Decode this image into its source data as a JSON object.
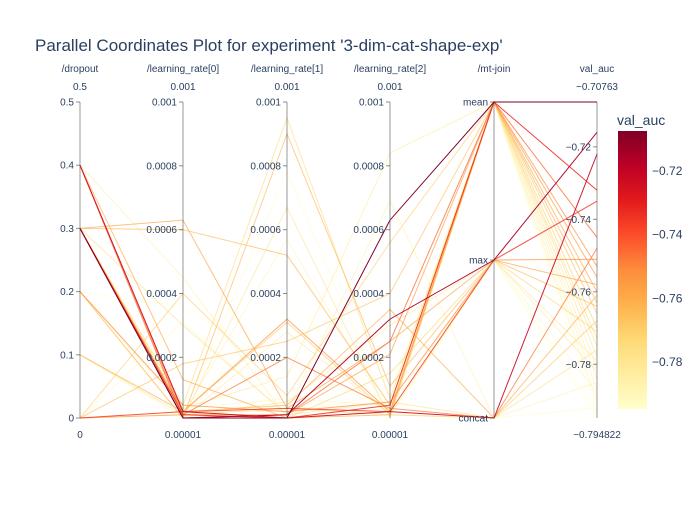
{
  "chart_data": {
    "type": "parallel-coordinates",
    "title": "Parallel Coordinates Plot for experiment '3-dim-cat-shape-exp'",
    "color_dimension": "val_auc",
    "colorbar": {
      "title": "val_auc",
      "range": [
        -0.794822,
        -0.70763
      ],
      "tick_labels": [
        "−0.72",
        "−0.74",
        "−0.76",
        "−0.78"
      ],
      "tick_values": [
        -0.72,
        -0.74,
        -0.76,
        -0.78
      ],
      "colorscale": [
        "#ffffcc",
        "#ffeda0",
        "#fed976",
        "#feb24c",
        "#fd8d3c",
        "#fc4e2a",
        "#e31a1c",
        "#bd0026",
        "#800026"
      ]
    },
    "dimensions": [
      {
        "label": "/dropout",
        "range": [
          0,
          0.5
        ],
        "top_label": "0.5",
        "bottom_label": "0",
        "tick_values": [
          0,
          0.1,
          0.2,
          0.3,
          0.4,
          0.5
        ],
        "tick_labels": [
          "0",
          "0.1",
          "0.2",
          "0.3",
          "0.4",
          "0.5"
        ]
      },
      {
        "label": "/learning_rate[0]",
        "range": [
          1e-05,
          0.001
        ],
        "top_label": "0.001",
        "bottom_label": "0.00001",
        "tick_values": [
          0.0002,
          0.0004,
          0.0006,
          0.0008,
          0.001
        ],
        "tick_labels": [
          "0.0002",
          "0.0004",
          "0.0006",
          "0.0008",
          "0.001"
        ]
      },
      {
        "label": "/learning_rate[1]",
        "range": [
          1e-05,
          0.001
        ],
        "top_label": "0.001",
        "bottom_label": "0.00001",
        "tick_values": [
          0.0002,
          0.0004,
          0.0006,
          0.0008,
          0.001
        ],
        "tick_labels": [
          "0.0002",
          "0.0004",
          "0.0006",
          "0.0008",
          "0.001"
        ]
      },
      {
        "label": "/learning_rate[2]",
        "range": [
          1e-05,
          0.001
        ],
        "top_label": "0.001",
        "bottom_label": "0.00001",
        "tick_values": [
          0.0002,
          0.0004,
          0.0006,
          0.0008,
          0.001
        ],
        "tick_labels": [
          "0.0002",
          "0.0004",
          "0.0006",
          "0.0008",
          "0.001"
        ]
      },
      {
        "label": "/mt-join",
        "categorical": true,
        "categories": [
          "concat",
          "max",
          "mean"
        ],
        "tick_values": [
          0,
          1,
          2
        ],
        "tick_labels": [
          "concat",
          "max",
          "mean"
        ]
      },
      {
        "label": "val_auc",
        "range": [
          -0.794822,
          -0.70763
        ],
        "top_label": "−0.70763",
        "bottom_label": "−0.794822",
        "tick_values": [
          -0.72,
          -0.74,
          -0.76,
          -0.78
        ],
        "tick_labels": [
          "−0.72",
          "−0.74",
          "−0.76",
          "−0.78"
        ]
      }
    ],
    "lines": [
      [
        0.3,
        1e-05,
        1e-05,
        0.00063,
        2,
        -0.70763
      ],
      [
        0.3,
        1e-05,
        2e-05,
        0.00032,
        1,
        -0.716
      ],
      [
        0.4,
        3e-05,
        1e-05,
        3e-05,
        0,
        -0.722
      ],
      [
        0.3,
        2e-05,
        1e-05,
        5e-05,
        2,
        -0.732
      ],
      [
        0.0,
        3e-05,
        4e-05,
        3e-05,
        1,
        -0.735
      ],
      [
        0.4,
        1e-05,
        2e-05,
        0.00025,
        2,
        -0.745
      ],
      [
        0.4,
        2e-05,
        0.0002,
        4e-05,
        0,
        -0.748
      ],
      [
        0.2,
        5e-05,
        3e-05,
        6e-05,
        1,
        -0.751
      ],
      [
        0.3,
        3e-05,
        0.00032,
        3e-05,
        2,
        -0.753
      ],
      [
        0.0,
        2e-05,
        2e-05,
        0.00021,
        2,
        -0.756
      ],
      [
        0.3,
        0.00063,
        4e-05,
        0.00025,
        1,
        -0.758
      ],
      [
        0.4,
        0.00013,
        1e-05,
        2e-05,
        2,
        -0.76
      ],
      [
        0.1,
        3e-05,
        5e-05,
        0.00035,
        0,
        -0.761
      ],
      [
        0.3,
        0.0006,
        0.00052,
        5e-05,
        2,
        -0.763
      ],
      [
        0.2,
        1e-05,
        0.0009,
        0.00011,
        1,
        -0.764
      ],
      [
        0.0,
        0.00018,
        0.00025,
        0.0004,
        2,
        -0.766
      ],
      [
        0.3,
        3e-05,
        0.00031,
        2e-05,
        0,
        -0.768
      ],
      [
        0.0,
        0.0004,
        8e-05,
        0.00056,
        2,
        -0.77
      ],
      [
        0.3,
        3e-05,
        1e-05,
        0.00015,
        1,
        -0.771
      ],
      [
        0.3,
        5e-05,
        0.00095,
        7e-05,
        2,
        -0.773
      ],
      [
        0.1,
        2e-05,
        4e-05,
        2e-05,
        2,
        -0.775
      ],
      [
        0.3,
        0.0003,
        2e-05,
        6e-05,
        0,
        -0.776
      ],
      [
        0.2,
        1e-05,
        0.00067,
        1e-05,
        2,
        -0.778
      ],
      [
        0.0,
        2e-05,
        6e-05,
        0.0003,
        1,
        -0.779
      ],
      [
        0.3,
        4e-05,
        0.00014,
        0.00084,
        2,
        -0.781
      ],
      [
        0.3,
        1e-05,
        0.00028,
        2e-05,
        1,
        -0.782
      ],
      [
        0.4,
        0.00045,
        1e-05,
        4e-05,
        2,
        -0.784
      ],
      [
        0.0,
        3e-05,
        3e-05,
        0.00069,
        0,
        -0.785
      ],
      [
        0.3,
        2e-05,
        0.00057,
        2e-05,
        2,
        -0.787
      ],
      [
        0.2,
        4e-05,
        7e-05,
        5e-05,
        1,
        -0.788
      ],
      [
        0.1,
        1e-05,
        1e-05,
        3e-05,
        2,
        -0.79
      ],
      [
        0.0,
        0.00031,
        2e-05,
        9e-05,
        2,
        -0.791
      ],
      [
        0.3,
        2e-05,
        0.00078,
        2e-05,
        0,
        -0.792
      ],
      [
        0.3,
        1e-05,
        5e-05,
        1e-05,
        1,
        -0.793
      ],
      [
        0.2,
        0.00036,
        0.00016,
        4e-05,
        2,
        -0.794
      ],
      [
        0.0,
        2e-05,
        0.0004,
        2e-05,
        1,
        -0.794822
      ]
    ]
  }
}
